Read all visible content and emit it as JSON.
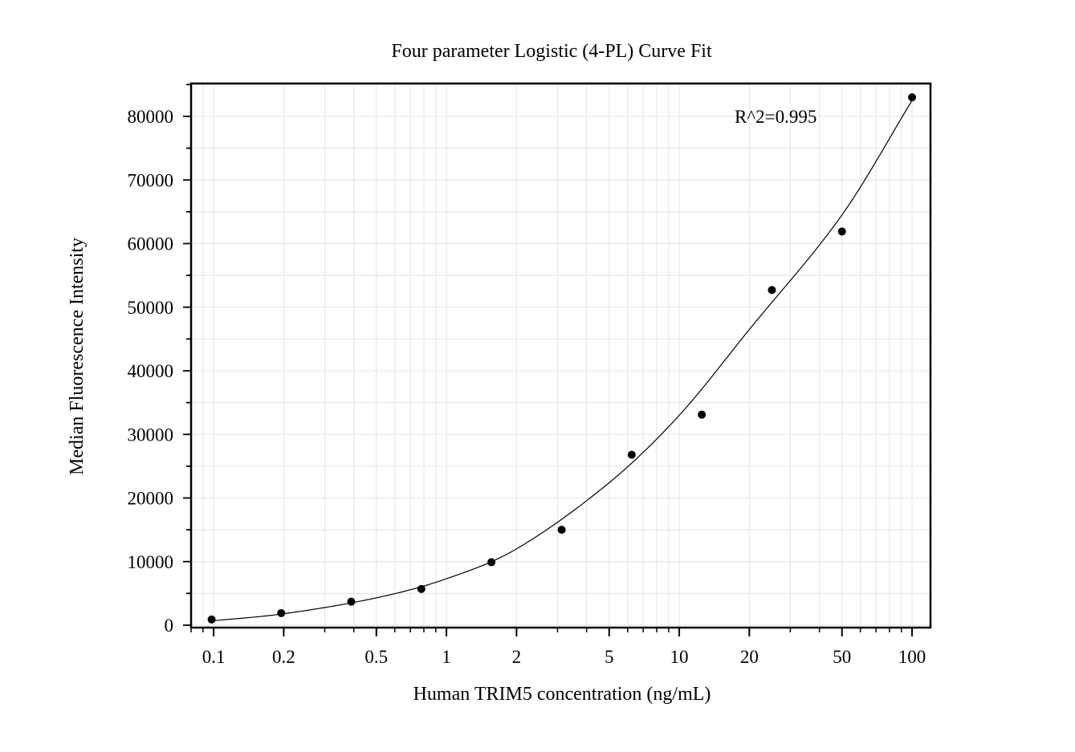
{
  "chart_data": {
    "type": "scatter",
    "title": "Four parameter Logistic (4-PL) Curve Fit",
    "xlabel": "Human TRIM5 concentration (ng/mL)",
    "ylabel": "Median Fluorescence Intensity",
    "x_scale": "log",
    "xlim": [
      0.08,
      120
    ],
    "ylim": [
      0,
      85000
    ],
    "grid": true,
    "x_ticks": [
      0.1,
      0.2,
      0.5,
      1,
      2,
      5,
      10,
      20,
      50,
      100
    ],
    "x_tick_labels": [
      "0.1",
      "0.2",
      "0.5",
      "1",
      "2",
      "5",
      "10",
      "20",
      "50",
      "100"
    ],
    "y_ticks": [
      0,
      10000,
      20000,
      30000,
      40000,
      50000,
      60000,
      70000,
      80000
    ],
    "y_tick_labels": [
      "0",
      "10000",
      "20000",
      "30000",
      "40000",
      "50000",
      "60000",
      "70000",
      "80000"
    ],
    "series": [
      {
        "type": "scatter",
        "x": [
          0.098,
          0.195,
          0.39,
          0.78,
          1.56,
          3.125,
          6.25,
          12.5,
          25,
          50,
          100
        ],
        "y": [
          900,
          1900,
          3700,
          5700,
          9900,
          15000,
          26800,
          33100,
          52700,
          61900,
          83000
        ],
        "color": "#000000"
      },
      {
        "type": "line",
        "fit": "4PL",
        "x": [
          0.1,
          0.2,
          0.5,
          1,
          2,
          5,
          10,
          20,
          50,
          100
        ],
        "y": [
          700,
          1800,
          4300,
          7300,
          12000,
          22400,
          33000,
          46500,
          64500,
          82500
        ],
        "color": "#000000"
      }
    ],
    "annotations": [
      {
        "text": "R^2=0.995"
      }
    ]
  }
}
